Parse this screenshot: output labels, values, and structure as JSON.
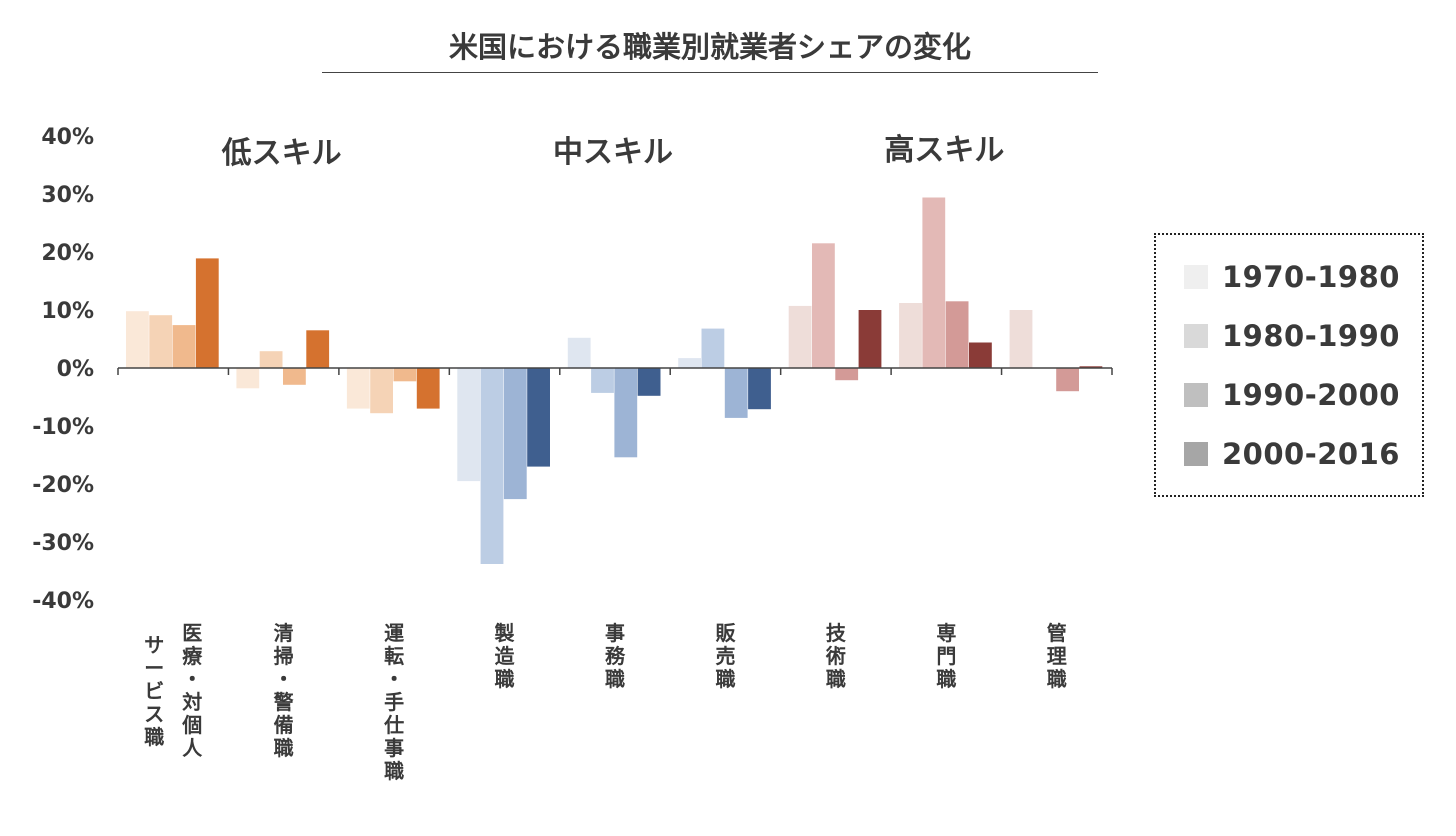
{
  "title": "米国における職業別就業者シェアの変化",
  "chart_data": {
    "type": "bar",
    "title": "米国における職業別就業者シェアの変化",
    "ylim": [
      -40,
      40
    ],
    "yticks": [
      "40%",
      "30%",
      "20%",
      "10%",
      "0%",
      "-10%",
      "-20%",
      "-30%",
      "-40%"
    ],
    "ytick_values": [
      40,
      30,
      20,
      10,
      0,
      -10,
      -20,
      -30,
      -40
    ],
    "groups": [
      "低スキル",
      "中スキル",
      "高スキル"
    ],
    "categories": [
      "サービス職\n医療・対個人",
      "清掃・警備職",
      "運転・手仕事職",
      "製造職",
      "事務職",
      "販売職",
      "技術職",
      "専門職",
      "管理職"
    ],
    "category_columns": [
      [
        "サービス職",
        "医療・対個人"
      ],
      [
        "清掃・警備職"
      ],
      [
        "運転・手仕事職"
      ],
      [
        "製造職"
      ],
      [
        "事務職"
      ],
      [
        "販売職"
      ],
      [
        "技術職"
      ],
      [
        "専門職"
      ],
      [
        "管理職"
      ]
    ],
    "series": [
      {
        "name": "1970-1980",
        "values": [
          9.8,
          -3.5,
          -7.0,
          -19.5,
          5.2,
          1.7,
          10.7,
          11.2,
          10.0
        ]
      },
      {
        "name": "1980-1990",
        "values": [
          9.1,
          2.9,
          -7.8,
          -33.8,
          -4.3,
          6.8,
          21.5,
          29.4,
          0.0
        ]
      },
      {
        "name": "1990-2000",
        "values": [
          7.4,
          -2.9,
          -2.3,
          -22.6,
          -15.4,
          -8.6,
          -2.1,
          11.5,
          -4.0
        ]
      },
      {
        "name": "2000-2016",
        "values": [
          18.9,
          6.5,
          -7.0,
          -17.0,
          -4.8,
          -7.1,
          10.0,
          4.4,
          0.3
        ]
      }
    ],
    "group_colors": [
      [
        "#fae8d8",
        "#f5d3b6",
        "#f0b98d",
        "#d5722f"
      ],
      [
        "#dfe6f0",
        "#bccde4",
        "#9db4d5",
        "#3f5f8f"
      ],
      [
        "#eeddd9",
        "#e3b9b6",
        "#d39a97",
        "#8a3b37"
      ]
    ],
    "legend_colors": [
      "#efefef",
      "#d9d9d9",
      "#bfbfbf",
      "#a6a6a6"
    ],
    "legend_position": "right"
  }
}
